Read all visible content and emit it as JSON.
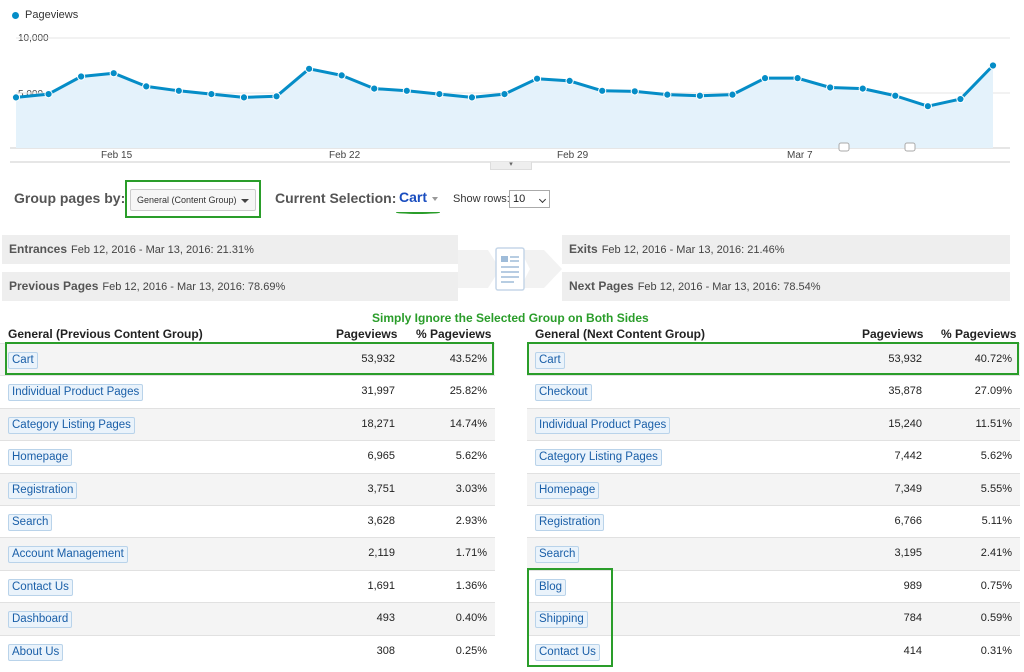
{
  "chart_data": {
    "type": "area",
    "series": [
      {
        "name": "Pageviews",
        "color": "#058dc7"
      }
    ],
    "x_ticks": [
      "Feb 15",
      "Feb 22",
      "Feb 29",
      "Mar 7"
    ],
    "y_ticks": [
      "10,000",
      "5,000"
    ],
    "ylim": [
      0,
      10000
    ],
    "x": [
      "Feb 12",
      "Feb 13",
      "Feb 14",
      "Feb 15",
      "Feb 16",
      "Feb 17",
      "Feb 18",
      "Feb 19",
      "Feb 20",
      "Feb 21",
      "Feb 22",
      "Feb 23",
      "Feb 24",
      "Feb 25",
      "Feb 26",
      "Feb 27",
      "Feb 28",
      "Feb 29",
      "Mar 1",
      "Mar 2",
      "Mar 3",
      "Mar 4",
      "Mar 5",
      "Mar 6",
      "Mar 7",
      "Mar 8",
      "Mar 9",
      "Mar 10",
      "Mar 11",
      "Mar 12",
      "Mar 13"
    ],
    "values": [
      4600,
      4900,
      6500,
      6800,
      5600,
      5200,
      4900,
      4600,
      4700,
      7200,
      6600,
      5400,
      5200,
      4900,
      4600,
      4900,
      6300,
      6100,
      5200,
      5150,
      4850,
      4750,
      4850,
      6350,
      6350,
      5500,
      5400,
      4750,
      3800,
      4450,
      7500
    ],
    "grid": true
  },
  "legend": {
    "label": "Pageviews"
  },
  "controls": {
    "group_by_label": "Group pages by:",
    "group_by_value": "General (Content Group)",
    "current_selection_label": "Current Selection:",
    "current_selection_value": "Cart",
    "show_rows_label": "Show rows:",
    "show_rows_value": "10"
  },
  "summary": {
    "entrances": {
      "label": "Entrances",
      "text": "Feb 12, 2016 - Mar 13, 2016: 21.31%"
    },
    "previous": {
      "label": "Previous Pages",
      "text": "Feb 12, 2016 - Mar 13, 2016: 78.69%"
    },
    "exits": {
      "label": "Exits",
      "text": "Feb 12, 2016 - Mar 13, 2016: 21.46%"
    },
    "next": {
      "label": "Next Pages",
      "text": "Feb 12, 2016 - Mar 13, 2016: 78.54%"
    }
  },
  "annotation": "Simply Ignore the Selected Group on Both Sides",
  "colors": {
    "accent": "#058dc7",
    "highlight": "#2a9d2a",
    "link": "#1a5fa8"
  },
  "left_table": {
    "headers": [
      "General (Previous Content Group)",
      "Pageviews",
      "% Pageviews"
    ],
    "rows": [
      {
        "name": "Cart",
        "pageviews": "53,932",
        "pct": "43.52%"
      },
      {
        "name": "Individual Product Pages",
        "pageviews": "31,997",
        "pct": "25.82%"
      },
      {
        "name": "Category Listing Pages",
        "pageviews": "18,271",
        "pct": "14.74%"
      },
      {
        "name": "Homepage",
        "pageviews": "6,965",
        "pct": "5.62%"
      },
      {
        "name": "Registration",
        "pageviews": "3,751",
        "pct": "3.03%"
      },
      {
        "name": "Search",
        "pageviews": "3,628",
        "pct": "2.93%"
      },
      {
        "name": "Account Management",
        "pageviews": "2,119",
        "pct": "1.71%"
      },
      {
        "name": "Contact Us",
        "pageviews": "1,691",
        "pct": "1.36%"
      },
      {
        "name": "Dashboard",
        "pageviews": "493",
        "pct": "0.40%"
      },
      {
        "name": "About Us",
        "pageviews": "308",
        "pct": "0.25%"
      }
    ]
  },
  "right_table": {
    "headers": [
      "General (Next Content Group)",
      "Pageviews",
      "% Pageviews"
    ],
    "rows": [
      {
        "name": "Cart",
        "pageviews": "53,932",
        "pct": "40.72%"
      },
      {
        "name": "Checkout",
        "pageviews": "35,878",
        "pct": "27.09%"
      },
      {
        "name": "Individual Product Pages",
        "pageviews": "15,240",
        "pct": "11.51%"
      },
      {
        "name": "Category Listing Pages",
        "pageviews": "7,442",
        "pct": "5.62%"
      },
      {
        "name": "Homepage",
        "pageviews": "7,349",
        "pct": "5.55%"
      },
      {
        "name": "Registration",
        "pageviews": "6,766",
        "pct": "5.11%"
      },
      {
        "name": "Search",
        "pageviews": "3,195",
        "pct": "2.41%"
      },
      {
        "name": "Blog",
        "pageviews": "989",
        "pct": "0.75%"
      },
      {
        "name": "Shipping",
        "pageviews": "784",
        "pct": "0.59%"
      },
      {
        "name": "Contact Us",
        "pageviews": "414",
        "pct": "0.31%"
      }
    ]
  }
}
